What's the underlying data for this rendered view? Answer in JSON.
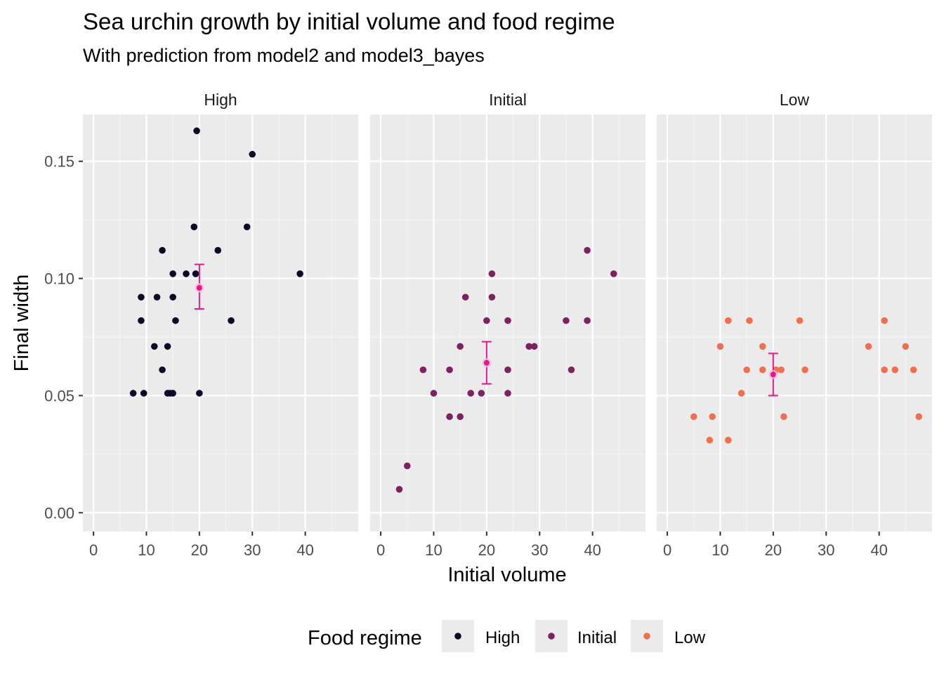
{
  "chart_data": {
    "type": "scatter",
    "title": "Sea urchin growth by initial volume and food regime",
    "subtitle": "With prediction from model2 and model3_bayes",
    "xlabel": "Initial volume",
    "ylabel": "Final width",
    "xlim": [
      -2,
      50
    ],
    "ylim": [
      -0.008,
      0.17
    ],
    "x_ticks": [
      "0",
      "10",
      "20",
      "30",
      "40"
    ],
    "y_ticks": [
      "0.00",
      "0.05",
      "0.10",
      "0.15"
    ],
    "grid": true,
    "legend": {
      "title": "Food regime",
      "position": "bottom",
      "items": [
        "High",
        "Initial",
        "Low"
      ]
    },
    "colors": {
      "High": "#0b0925",
      "Initial": "#7d2163",
      "Low": "#f0704e",
      "prediction": "#e8168c",
      "panel_bg": "#ebebeb",
      "grid_major": "#ffffff",
      "grid_minor": "#f5f5f5"
    },
    "panels": [
      {
        "name": "High",
        "points": [
          [
            19.5,
            0.163
          ],
          [
            30,
            0.153
          ],
          [
            19,
            0.122
          ],
          [
            29,
            0.122
          ],
          [
            13,
            0.112
          ],
          [
            23.5,
            0.112
          ],
          [
            15,
            0.102
          ],
          [
            17.5,
            0.102
          ],
          [
            19.3,
            0.102
          ],
          [
            39,
            0.102
          ],
          [
            9,
            0.092
          ],
          [
            12,
            0.092
          ],
          [
            15,
            0.092
          ],
          [
            9,
            0.082
          ],
          [
            15.5,
            0.082
          ],
          [
            26,
            0.082
          ],
          [
            11.5,
            0.071
          ],
          [
            14,
            0.071
          ],
          [
            13,
            0.061
          ],
          [
            7.5,
            0.051
          ],
          [
            9.5,
            0.051
          ],
          [
            14,
            0.051
          ],
          [
            14.5,
            0.051
          ],
          [
            15,
            0.051
          ],
          [
            20,
            0.051
          ]
        ],
        "prediction": {
          "x": 20,
          "y": 0.096,
          "lower": 0.087,
          "upper": 0.106
        }
      },
      {
        "name": "Initial",
        "points": [
          [
            44,
            0.102
          ],
          [
            39,
            0.112
          ],
          [
            21,
            0.102
          ],
          [
            16,
            0.092
          ],
          [
            21,
            0.092
          ],
          [
            20,
            0.082
          ],
          [
            24,
            0.082
          ],
          [
            35,
            0.082
          ],
          [
            39,
            0.082
          ],
          [
            15,
            0.071
          ],
          [
            28,
            0.071
          ],
          [
            29,
            0.071
          ],
          [
            8,
            0.061
          ],
          [
            13,
            0.061
          ],
          [
            24,
            0.061
          ],
          [
            36,
            0.061
          ],
          [
            10,
            0.051
          ],
          [
            17,
            0.051
          ],
          [
            19,
            0.051
          ],
          [
            24,
            0.051
          ],
          [
            13,
            0.041
          ],
          [
            15,
            0.041
          ],
          [
            5,
            0.02
          ],
          [
            3.5,
            0.01
          ]
        ],
        "prediction": {
          "x": 20,
          "y": 0.064,
          "lower": 0.055,
          "upper": 0.073
        }
      },
      {
        "name": "Low",
        "points": [
          [
            11.5,
            0.082
          ],
          [
            15.5,
            0.082
          ],
          [
            25,
            0.082
          ],
          [
            41,
            0.082
          ],
          [
            10,
            0.071
          ],
          [
            18,
            0.071
          ],
          [
            38,
            0.071
          ],
          [
            45,
            0.071
          ],
          [
            15,
            0.061
          ],
          [
            18,
            0.061
          ],
          [
            20.5,
            0.061
          ],
          [
            21.5,
            0.061
          ],
          [
            26,
            0.061
          ],
          [
            41,
            0.061
          ],
          [
            43,
            0.061
          ],
          [
            46.5,
            0.061
          ],
          [
            14,
            0.051
          ],
          [
            5,
            0.041
          ],
          [
            8.5,
            0.041
          ],
          [
            22,
            0.041
          ],
          [
            47.5,
            0.041
          ],
          [
            8,
            0.031
          ],
          [
            11.5,
            0.031
          ]
        ],
        "prediction": {
          "x": 20,
          "y": 0.059,
          "lower": 0.05,
          "upper": 0.068
        }
      }
    ]
  }
}
